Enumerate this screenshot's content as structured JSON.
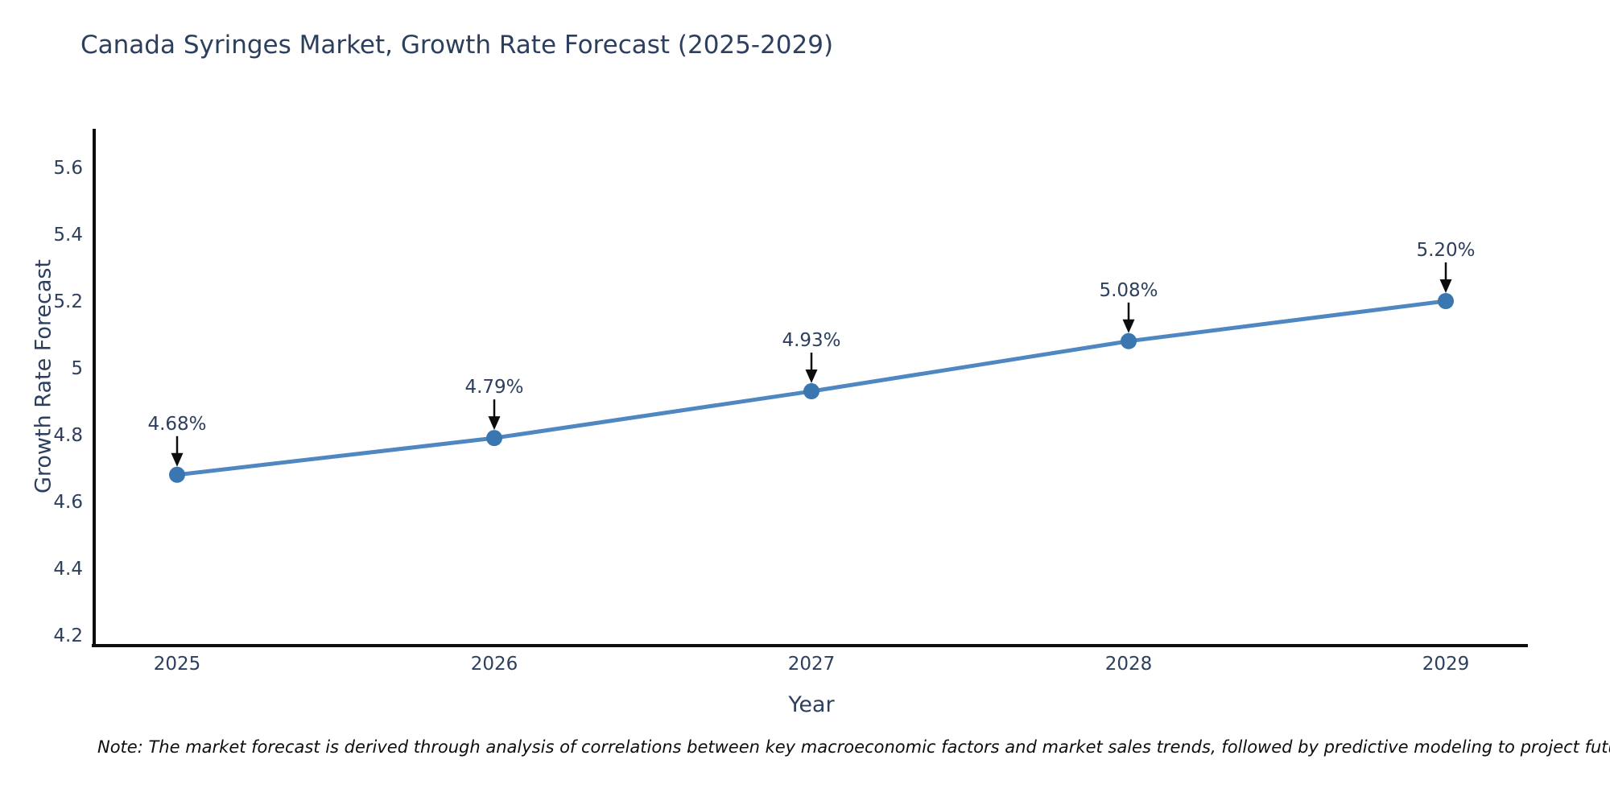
{
  "chart_data": {
    "type": "line",
    "title": "Canada Syringes Market, Growth Rate Forecast (2025-2029)",
    "xlabel": "Year",
    "ylabel": "Growth Rate Forecast",
    "x": [
      2025,
      2026,
      2027,
      2028,
      2029
    ],
    "x_tick_labels": [
      "2025",
      "2026",
      "2027",
      "2028",
      "2029"
    ],
    "series": [
      {
        "name": "Growth Rate Forecast",
        "values": [
          4.68,
          4.79,
          4.93,
          5.08,
          5.2
        ],
        "point_labels": [
          "4.68%",
          "4.79%",
          "4.93%",
          "5.08%",
          "5.20%"
        ]
      }
    ],
    "y_ticks": [
      4.2,
      4.4,
      4.6,
      4.8,
      5,
      5.2,
      5.4,
      5.6
    ],
    "y_tick_labels": [
      "4.2",
      "4.4",
      "4.6",
      "4.8",
      "5",
      "5.2",
      "5.4",
      "5.6"
    ],
    "ylim": [
      4.2,
      5.6
    ],
    "grid": false,
    "legend_position": "none",
    "colors": {
      "line": "#4f87c0",
      "marker": "#3a76b0",
      "axis": "#0d0d0d",
      "text": "#2d3f5e",
      "annotation_arrow": "#0d0d0d",
      "background": "#ffffff"
    }
  },
  "note": {
    "text": "Note: The market forecast is derived through analysis of correlations between key macroeconomic factors and market sales trends, followed by predictive modeling to project future sales"
  }
}
